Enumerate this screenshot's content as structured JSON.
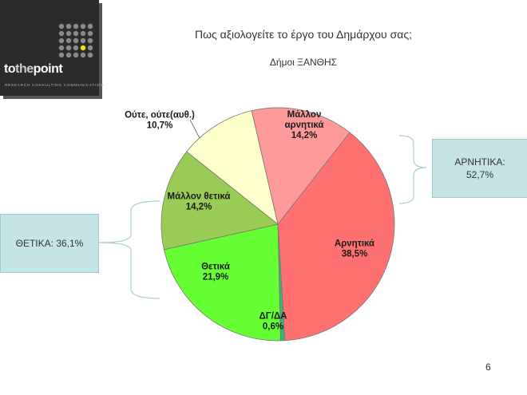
{
  "logo": {
    "word_to": "to",
    "word_the": "the",
    "word_point": "point",
    "tagline": "RESEARCH  CONSULTING  COMMUNICATION"
  },
  "header": {
    "title": "Πως αξιολογείτε το έργο του Δημάρχου σας;",
    "subtitle": "Δήμοι ΞΑΝΘΗΣ"
  },
  "groups": {
    "negative": {
      "name": "ΑΡΝΗΤΙΚΑ:",
      "value": "52,7%"
    },
    "positive": {
      "name": "ΘΕΤΙΚΑ: 36,1%"
    }
  },
  "page_number": "6",
  "chart_data": {
    "type": "pie",
    "title": "Πως αξιολογείτε το έργο του Δημάρχου σας;",
    "subtitle": "Δήμοι ΞΑΝΘΗΣ",
    "slices": [
      {
        "label_lines": [
          "Μάλλον",
          "αρνητικά"
        ],
        "value": 14.2,
        "value_text": "14,2%",
        "color": "#ff9a9a"
      },
      {
        "label_lines": [
          "Αρνητικά"
        ],
        "value": 38.5,
        "value_text": "38,5%",
        "color": "#ff7070"
      },
      {
        "label_lines": [
          "ΔΓ/ΔΑ"
        ],
        "value": 0.6,
        "value_text": "0,6%",
        "color": "#3cb371"
      },
      {
        "label_lines": [
          "Θετικά"
        ],
        "value": 21.9,
        "value_text": "21,9%",
        "color": "#66ff33"
      },
      {
        "label_lines": [
          "Μάλλον θετικά"
        ],
        "value": 14.2,
        "value_text": "14,2%",
        "color": "#99cc55"
      },
      {
        "label_lines": [
          "Ούτε, ούτε(αυθ.)"
        ],
        "value": 10.7,
        "value_text": "10,7%",
        "color": "#ffffcc"
      }
    ],
    "legend": "none"
  }
}
